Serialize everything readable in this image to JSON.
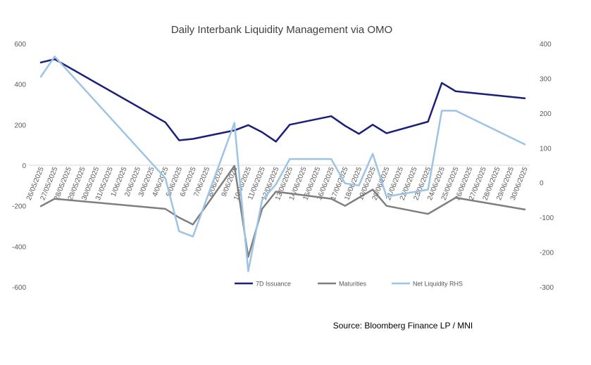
{
  "chart_data": {
    "type": "line",
    "title": "Daily Interbank Liquidity Management via OMO",
    "source": "Source: Bloomberg Finance LP / MNI",
    "categories": [
      "26/05/2025",
      "27/05/2025",
      "28/05/2025",
      "29/05/2025",
      "30/05/2025",
      "31/05/2025",
      "1/06/2025",
      "2/06/2025",
      "3/06/2025",
      "4/06/2025",
      "5/06/2025",
      "6/06/2025",
      "7/06/2025",
      "8/06/2025",
      "9/06/2025",
      "10/06/2025",
      "11/06/2025",
      "12/06/2025",
      "13/06/2025",
      "14/06/2025",
      "15/06/2025",
      "16/06/2025",
      "17/06/2025",
      "18/06/2025",
      "19/06/2025",
      "20/06/2025",
      "21/06/2025",
      "22/06/2025",
      "23/06/2025",
      "24/06/2025",
      "25/06/2025",
      "26/06/2025",
      "27/06/2025",
      "28/06/2025",
      "29/06/2025",
      "30/06/2025"
    ],
    "left_axis": {
      "min": -600,
      "max": 600,
      "ticks": [
        600,
        400,
        200,
        0,
        -200,
        -400,
        -600
      ]
    },
    "right_axis": {
      "min": -300,
      "max": 400,
      "ticks": [
        400,
        300,
        200,
        100,
        0,
        -100,
        -200,
        -300
      ]
    },
    "legend_position": "bottom",
    "series": [
      {
        "name": "7D Issuance",
        "axis": "left",
        "color": "#1a1f7a",
        "width": 2.5,
        "points": [
          [
            0,
            507
          ],
          [
            1,
            523
          ],
          [
            9,
            212
          ],
          [
            10,
            123
          ],
          [
            11,
            130
          ],
          [
            14,
            172
          ],
          [
            15,
            198
          ],
          [
            16,
            163
          ],
          [
            17,
            117
          ],
          [
            18,
            200
          ],
          [
            21,
            242
          ],
          [
            22,
            195
          ],
          [
            23,
            155
          ],
          [
            24,
            200
          ],
          [
            25,
            158
          ],
          [
            28,
            215
          ],
          [
            29,
            406
          ],
          [
            30,
            365
          ],
          [
            35,
            330
          ]
        ]
      },
      {
        "name": "Maturities",
        "axis": "left",
        "color": "#7f7f7f",
        "width": 2.5,
        "points": [
          [
            0,
            -202
          ],
          [
            1,
            -165
          ],
          [
            9,
            -215
          ],
          [
            10,
            -258
          ],
          [
            11,
            -292
          ],
          [
            14,
            -3
          ],
          [
            15,
            -452
          ],
          [
            16,
            -215
          ],
          [
            17,
            -130
          ],
          [
            21,
            -165
          ],
          [
            22,
            -200
          ],
          [
            23,
            -160
          ],
          [
            24,
            -120
          ],
          [
            25,
            -200
          ],
          [
            28,
            -240
          ],
          [
            30,
            -160
          ],
          [
            35,
            -218
          ]
        ]
      },
      {
        "name": "Net Liquidity RHS",
        "axis": "right",
        "color": "#9dc3e6",
        "width": 2.5,
        "points": [
          [
            0,
            305
          ],
          [
            1,
            363
          ],
          [
            9,
            13
          ],
          [
            10,
            -140
          ],
          [
            11,
            -155
          ],
          [
            14,
            172
          ],
          [
            15,
            -255
          ],
          [
            16,
            -50
          ],
          [
            17,
            -5
          ],
          [
            18,
            68
          ],
          [
            21,
            68
          ],
          [
            22,
            -2
          ],
          [
            23,
            -8
          ],
          [
            24,
            83
          ],
          [
            25,
            -40
          ],
          [
            28,
            -20
          ],
          [
            29,
            207
          ],
          [
            30,
            207
          ],
          [
            35,
            110
          ]
        ]
      }
    ]
  }
}
